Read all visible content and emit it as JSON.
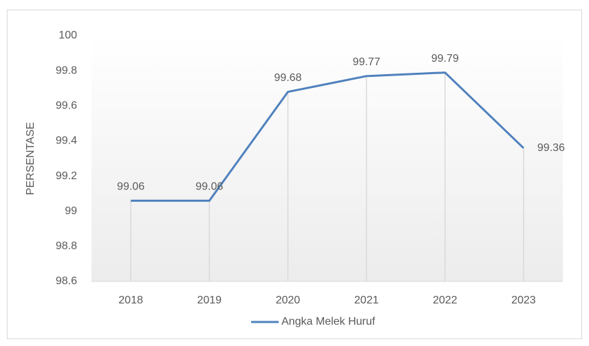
{
  "chart_data": {
    "type": "line",
    "categories": [
      "2018",
      "2019",
      "2020",
      "2021",
      "2022",
      "2023"
    ],
    "series": [
      {
        "name": "Angka Melek Huruf",
        "color": "#4f81bd",
        "values": [
          99.06,
          99.06,
          99.68,
          99.77,
          99.79,
          99.36
        ]
      }
    ],
    "y_label": "PERSENTASE",
    "ylim": [
      98.6,
      100
    ],
    "yticks": [
      98.6,
      98.8,
      99,
      99.2,
      99.4,
      99.6,
      99.8,
      100
    ],
    "drop_lines": true,
    "legend": "bottom"
  }
}
